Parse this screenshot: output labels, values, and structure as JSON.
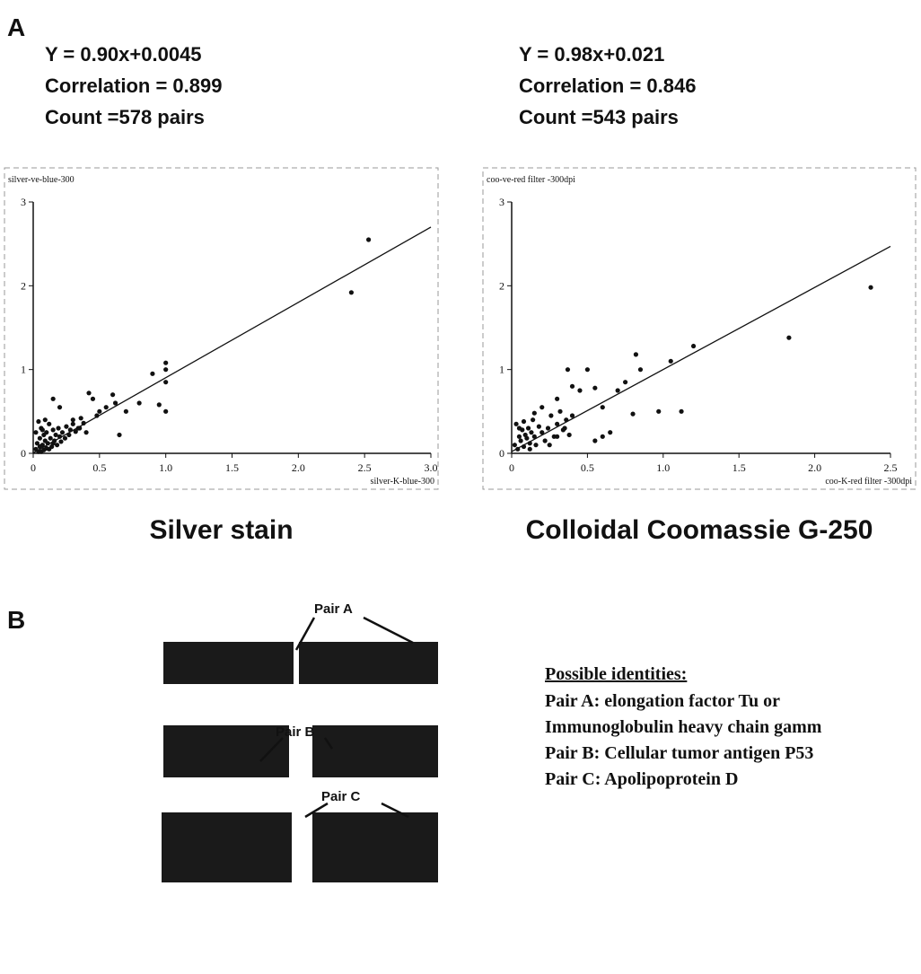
{
  "panel_labels": [
    "A",
    "B"
  ],
  "chart_data": [
    {
      "type": "scatter",
      "annotations": [
        "Y = 0.90x+0.0045",
        "Correlation = 0.899",
        "Count =578 pairs"
      ],
      "y_label": "silver-ve-blue-300",
      "x_label": "silver-K-blue-300",
      "caption": "Silver stain",
      "xlim": [
        0,
        3
      ],
      "ylim": [
        0,
        3
      ],
      "xticks": [
        0,
        0.5,
        {
          "value": 1,
          "label": "1.0"
        },
        1.5,
        {
          "value": 2,
          "label": "2.0"
        },
        2.5,
        {
          "value": 3,
          "label": "3.0"
        }
      ],
      "yticks": [
        0,
        1,
        2,
        3
      ],
      "color": "#111111",
      "x": [
        0.02,
        0.03,
        0.04,
        0.05,
        0.05,
        0.06,
        0.07,
        0.08,
        0.08,
        0.09,
        0.1,
        0.1,
        0.11,
        0.12,
        0.13,
        0.14,
        0.15,
        0.16,
        0.17,
        0.18,
        0.19,
        0.2,
        0.21,
        0.22,
        0.24,
        0.25,
        0.27,
        0.28,
        0.3,
        0.32,
        0.34,
        0.36,
        0.38,
        0.04,
        0.06,
        0.09,
        0.12,
        0.15,
        0.02,
        0.07,
        0.15,
        0.2,
        0.3,
        0.35,
        0.4,
        0.42,
        0.45,
        0.48,
        0.5,
        0.55,
        0.6,
        0.62,
        0.65,
        0.7,
        0.8,
        0.9,
        0.95,
        1.0,
        1.0,
        1.0,
        1.0,
        2.4,
        2.53
      ],
      "values": [
        0.05,
        0.12,
        0.02,
        0.18,
        0.08,
        0.3,
        0.1,
        0.04,
        0.22,
        0.15,
        0.06,
        0.25,
        0.12,
        0.35,
        0.18,
        0.08,
        0.28,
        0.15,
        0.22,
        0.1,
        0.3,
        0.2,
        0.14,
        0.25,
        0.18,
        0.32,
        0.22,
        0.28,
        0.35,
        0.26,
        0.3,
        0.42,
        0.36,
        0.38,
        0.02,
        0.4,
        0.05,
        0.12,
        0.25,
        0.28,
        0.65,
        0.55,
        0.4,
        0.3,
        0.25,
        0.72,
        0.65,
        0.45,
        0.5,
        0.55,
        0.7,
        0.6,
        0.22,
        0.5,
        0.6,
        0.95,
        0.58,
        1.08,
        1.0,
        0.85,
        0.5,
        1.92,
        2.55
      ],
      "fit": {
        "x": [
          0,
          3
        ],
        "y": [
          0.0045,
          2.7
        ]
      }
    },
    {
      "type": "scatter",
      "annotations": [
        "Y = 0.98x+0.021",
        "Correlation = 0.846",
        "Count =543 pairs"
      ],
      "y_label": "coo-ve-red filter -300dpi",
      "x_label": "coo-K-red filter -300dpi",
      "caption": "Colloidal Coomassie G-250",
      "xlim": [
        0,
        2.5
      ],
      "ylim": [
        0,
        3
      ],
      "xticks": [
        0,
        0.5,
        {
          "value": 1,
          "label": "1.0"
        },
        1.5,
        {
          "value": 2,
          "label": "2.0"
        },
        2.5
      ],
      "yticks": [
        0,
        1,
        2,
        3
      ],
      "color": "#111111",
      "x": [
        0.02,
        0.03,
        0.04,
        0.05,
        0.06,
        0.07,
        0.08,
        0.09,
        0.1,
        0.11,
        0.12,
        0.13,
        0.14,
        0.15,
        0.16,
        0.18,
        0.2,
        0.22,
        0.24,
        0.26,
        0.28,
        0.3,
        0.32,
        0.34,
        0.36,
        0.38,
        0.4,
        0.05,
        0.08,
        0.12,
        0.15,
        0.2,
        0.25,
        0.3,
        0.35,
        0.3,
        0.37,
        0.4,
        0.45,
        0.5,
        0.55,
        0.55,
        0.6,
        0.6,
        0.65,
        0.7,
        0.75,
        0.8,
        0.82,
        0.85,
        0.97,
        1.05,
        1.12,
        1.2,
        1.83,
        2.37
      ],
      "values": [
        0.1,
        0.35,
        0.05,
        0.2,
        0.15,
        0.28,
        0.08,
        0.22,
        0.18,
        0.3,
        0.12,
        0.25,
        0.4,
        0.2,
        0.1,
        0.32,
        0.25,
        0.15,
        0.3,
        0.45,
        0.2,
        0.35,
        0.5,
        0.28,
        0.4,
        0.22,
        0.45,
        0.3,
        0.38,
        0.05,
        0.48,
        0.55,
        0.1,
        0.2,
        0.3,
        0.65,
        1.0,
        0.8,
        0.75,
        1.0,
        0.78,
        0.15,
        0.55,
        0.2,
        0.25,
        0.75,
        0.85,
        0.47,
        1.18,
        1.0,
        0.5,
        1.1,
        0.5,
        1.28,
        1.38,
        1.98
      ],
      "fit": {
        "x": [
          0,
          2.5
        ],
        "y": [
          0.021,
          2.47
        ]
      }
    }
  ],
  "panel_b": {
    "pair_labels": [
      "Pair A",
      "Pair B",
      "Pair C"
    ],
    "identities": {
      "heading": "Possible identities:",
      "lines": [
        "Pair A: elongation factor Tu or",
        "Immunoglobulin heavy chain gamm",
        "Pair B: Cellular tumor antigen  P53",
        "Pair C: Apolipoprotein D"
      ]
    }
  }
}
